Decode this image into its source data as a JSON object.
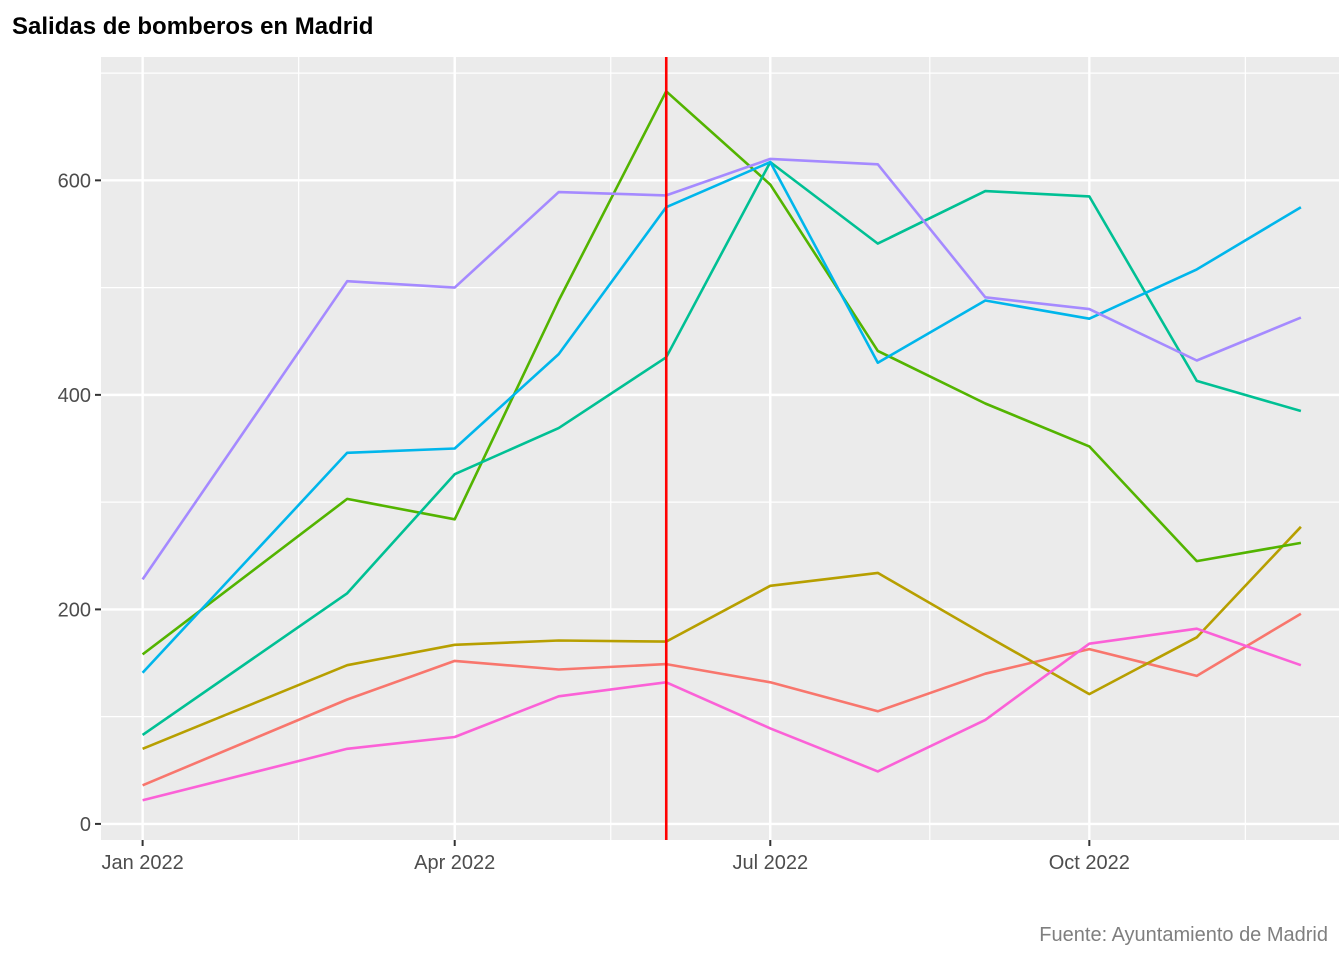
{
  "chart_data": {
    "type": "line",
    "title": "Salidas de bomberos en Madrid",
    "xlabel": "",
    "ylabel": "",
    "caption": "Fuente: Ayuntamiento de Madrid",
    "x": [
      "2022-01-01",
      "2022-03-01",
      "2022-04-01",
      "2022-05-01",
      "2022-06-01",
      "2022-07-01",
      "2022-08-01",
      "2022-09-01",
      "2022-10-01",
      "2022-11-01",
      "2022-12-01"
    ],
    "x_ticks": [
      {
        "date": "2022-01-01",
        "label": "Jan 2022"
      },
      {
        "date": "2022-04-01",
        "label": "Apr 2022"
      },
      {
        "date": "2022-07-01",
        "label": "Jul 2022"
      },
      {
        "date": "2022-10-01",
        "label": "Oct 2022"
      }
    ],
    "x_minor_ticks": [
      "2022-02-15",
      "2022-05-16",
      "2022-08-16",
      "2022-11-15"
    ],
    "xlim": [
      "2021-12-20",
      "2022-12-12"
    ],
    "ylim": [
      -15,
      715
    ],
    "y_ticks": [
      0,
      200,
      400,
      600
    ],
    "y_tick_labels": [
      "0",
      "200",
      "400",
      "600"
    ],
    "y_minor_ticks": [
      100,
      300,
      500,
      700
    ],
    "grid": true,
    "legend": "none",
    "reference_line": {
      "date": "2022-06-01",
      "color": "#ff0000"
    },
    "series": [
      {
        "color": "#F8766D",
        "values": [
          36,
          116,
          152,
          144,
          149,
          132,
          105,
          140,
          163,
          138,
          196
        ]
      },
      {
        "color": "#B79F00",
        "values": [
          70,
          148,
          167,
          171,
          170,
          222,
          234,
          176,
          121,
          174,
          277
        ]
      },
      {
        "color": "#53B400",
        "values": [
          158,
          303,
          284,
          488,
          683,
          596,
          441,
          392,
          352,
          245,
          262
        ]
      },
      {
        "color": "#00C094",
        "values": [
          83,
          215,
          326,
          369,
          435,
          617,
          541,
          590,
          585,
          413,
          385
        ]
      },
      {
        "color": "#00B6EB",
        "values": [
          141,
          346,
          350,
          438,
          575,
          617,
          430,
          488,
          471,
          517,
          575
        ]
      },
      {
        "color": "#A58AFF",
        "values": [
          228,
          506,
          500,
          589,
          586,
          620,
          615,
          491,
          480,
          432,
          472
        ]
      },
      {
        "color": "#FB61D7",
        "values": [
          22,
          70,
          81,
          119,
          132,
          89,
          49,
          97,
          168,
          182,
          148
        ]
      }
    ]
  }
}
